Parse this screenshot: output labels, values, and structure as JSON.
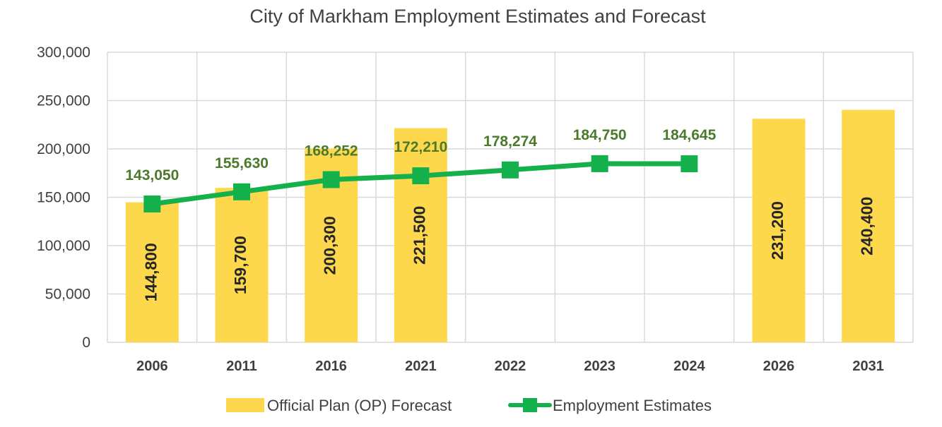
{
  "chart_data": {
    "type": "bar+line",
    "title": "City of Markham Employment Estimates and Forecast",
    "xlabel": "",
    "ylabel": "",
    "categories": [
      "2006",
      "2011",
      "2016",
      "2021",
      "2022",
      "2023",
      "2024",
      "2026",
      "2031"
    ],
    "ylim": [
      0,
      300000
    ],
    "yticks": [
      "0",
      "50,000",
      "100,000",
      "150,000",
      "200,000",
      "250,000",
      "300,000"
    ],
    "ytick_values": [
      0,
      50000,
      100000,
      150000,
      200000,
      250000,
      300000
    ],
    "grid": true,
    "legend_position": "bottom",
    "series": [
      {
        "name": "Official Plan (OP) Forecast",
        "type": "bar",
        "color": "#fdd84d",
        "values": [
          144800,
          159700,
          200300,
          221500,
          null,
          null,
          null,
          231200,
          240400
        ],
        "labels": [
          "144,800",
          "159,700",
          "200,300",
          "221,500",
          null,
          null,
          null,
          "231,200",
          "240,400"
        ]
      },
      {
        "name": "Employment Estimates",
        "type": "line",
        "color": "#14b04b",
        "label_color": "#4a7a2a",
        "values": [
          143050,
          155630,
          168252,
          172210,
          178274,
          184750,
          184645,
          null,
          null
        ],
        "labels": [
          "143,050",
          "155,630",
          "168,252",
          "172,210",
          "178,274",
          "184,750",
          "184,645",
          null,
          null
        ]
      }
    ]
  }
}
